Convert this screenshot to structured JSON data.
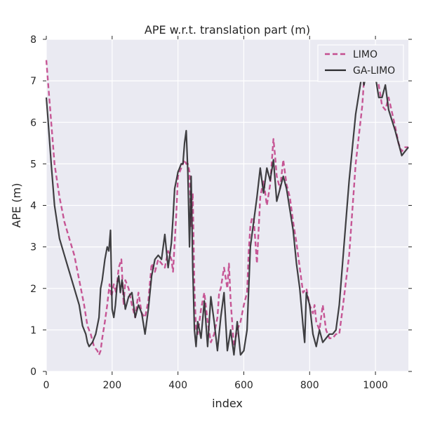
{
  "chart_data": {
    "type": "line",
    "title": "APE w.r.t. translation part (m)",
    "xlabel": "index",
    "ylabel": "APE (m)",
    "xlim": [
      0,
      1100
    ],
    "ylim": [
      0,
      8
    ],
    "xticks": [
      0,
      200,
      400,
      600,
      800,
      1000
    ],
    "yticks": [
      0,
      1,
      2,
      3,
      4,
      5,
      6,
      7,
      8
    ],
    "grid": true,
    "background": "#EAEAF2",
    "legend_position": "top-right",
    "series": [
      {
        "name": "LIMO",
        "style": "dashed",
        "color": "#C44E8F",
        "x": [
          0,
          5,
          15,
          25,
          40,
          55,
          70,
          85,
          100,
          115,
          125,
          135,
          145,
          155,
          160,
          165,
          170,
          178,
          185,
          192,
          198,
          205,
          212,
          220,
          228,
          235,
          240,
          250,
          260,
          270,
          280,
          290,
          300,
          310,
          320,
          330,
          340,
          350,
          360,
          370,
          380,
          385,
          390,
          395,
          400,
          410,
          420,
          425,
          430,
          435,
          440,
          445,
          450,
          455,
          460,
          470,
          480,
          490,
          500,
          510,
          520,
          525,
          530,
          540,
          550,
          555,
          560,
          570,
          580,
          590,
          600,
          610,
          615,
          620,
          625,
          630,
          640,
          650,
          660,
          670,
          680,
          690,
          695,
          700,
          710,
          720,
          730,
          740,
          750,
          760,
          770,
          780,
          790,
          800,
          810,
          815,
          820,
          830,
          840,
          850,
          860,
          870,
          880,
          890,
          900,
          920,
          940,
          960,
          965,
          975,
          985,
          1000,
          1010,
          1020,
          1030,
          1040,
          1060,
          1070,
          1080,
          1090,
          1100
        ],
        "values": [
          7.5,
          7.0,
          6.0,
          5.0,
          4.2,
          3.6,
          3.2,
          2.8,
          2.2,
          1.6,
          1.1,
          0.9,
          0.6,
          0.5,
          0.4,
          0.5,
          0.8,
          1.2,
          1.6,
          2.1,
          1.8,
          2.1,
          1.9,
          2.5,
          2.7,
          1.6,
          2.2,
          2.0,
          1.6,
          1.3,
          1.9,
          1.4,
          1.3,
          1.7,
          2.6,
          2.4,
          2.7,
          2.6,
          2.5,
          2.9,
          2.7,
          2.4,
          3.1,
          3.8,
          4.7,
          4.9,
          5.1,
          5.0,
          5.0,
          4.8,
          3.5,
          4.3,
          2.0,
          1.0,
          0.9,
          1.5,
          1.9,
          1.2,
          0.7,
          0.9,
          1.3,
          1.9,
          2.0,
          2.5,
          2.0,
          2.6,
          1.7,
          0.6,
          1.0,
          1.2,
          1.6,
          1.9,
          2.9,
          3.5,
          3.7,
          3.7,
          2.6,
          4.2,
          4.6,
          4.0,
          4.5,
          5.6,
          5.2,
          4.7,
          4.4,
          5.1,
          4.5,
          4.2,
          3.6,
          3.1,
          2.5,
          1.9,
          2.0,
          1.6,
          1.4,
          1.6,
          1.2,
          1.0,
          1.6,
          1.0,
          0.8,
          0.8,
          0.9,
          0.9,
          1.5,
          2.8,
          5.0,
          6.4,
          7.0,
          7.4,
          7.6,
          7.2,
          6.9,
          6.4,
          6.3,
          6.6,
          5.9,
          5.5,
          5.3,
          5.4,
          5.4
        ]
      },
      {
        "name": "GA-LIMO",
        "style": "solid",
        "color": "#2B2B2E",
        "x": [
          0,
          5,
          15,
          25,
          40,
          55,
          70,
          85,
          100,
          110,
          120,
          125,
          130,
          140,
          150,
          160,
          165,
          170,
          178,
          185,
          190,
          195,
          198,
          200,
          205,
          210,
          215,
          220,
          225,
          230,
          240,
          250,
          260,
          270,
          280,
          290,
          300,
          310,
          320,
          330,
          340,
          350,
          360,
          370,
          380,
          385,
          390,
          395,
          400,
          410,
          415,
          420,
          425,
          430,
          435,
          440,
          445,
          450,
          455,
          460,
          470,
          480,
          490,
          500,
          510,
          520,
          530,
          540,
          550,
          560,
          570,
          580,
          590,
          600,
          610,
          620,
          630,
          640,
          650,
          660,
          670,
          680,
          690,
          700,
          710,
          720,
          730,
          740,
          750,
          760,
          770,
          780,
          785,
          790,
          800,
          810,
          820,
          830,
          840,
          850,
          860,
          870,
          880,
          890,
          900,
          920,
          940,
          960,
          965,
          975,
          985,
          1000,
          1010,
          1020,
          1030,
          1040,
          1060,
          1070,
          1080,
          1090,
          1100
        ],
        "values": [
          6.6,
          6.1,
          5.0,
          4.0,
          3.2,
          2.8,
          2.4,
          2.0,
          1.6,
          1.1,
          0.9,
          0.7,
          0.6,
          0.7,
          0.9,
          1.3,
          2.0,
          2.2,
          2.7,
          3.0,
          2.9,
          3.4,
          2.2,
          1.5,
          1.3,
          1.6,
          2.1,
          2.3,
          1.9,
          2.2,
          1.5,
          1.8,
          1.9,
          1.3,
          1.6,
          1.4,
          0.9,
          1.5,
          2.3,
          2.7,
          2.8,
          2.7,
          3.3,
          2.5,
          3.1,
          3.7,
          4.4,
          4.6,
          4.8,
          5.0,
          5.0,
          5.5,
          5.8,
          4.8,
          3.0,
          4.7,
          2.5,
          1.0,
          0.6,
          1.2,
          0.8,
          1.7,
          0.6,
          1.8,
          1.2,
          0.5,
          1.3,
          1.9,
          0.5,
          1.0,
          0.4,
          1.2,
          0.4,
          0.5,
          1.0,
          3.0,
          3.6,
          4.2,
          4.9,
          4.3,
          4.9,
          4.6,
          5.1,
          4.1,
          4.4,
          4.7,
          4.4,
          3.9,
          3.4,
          2.6,
          2.0,
          1.1,
          0.7,
          1.9,
          1.6,
          0.9,
          0.6,
          1.0,
          0.7,
          0.8,
          0.9,
          0.9,
          1.0,
          1.6,
          2.6,
          4.6,
          6.2,
          7.2,
          6.9,
          7.3,
          7.7,
          7.1,
          6.6,
          6.6,
          6.9,
          6.3,
          5.8,
          5.5,
          5.2,
          5.3,
          5.4
        ]
      }
    ]
  }
}
